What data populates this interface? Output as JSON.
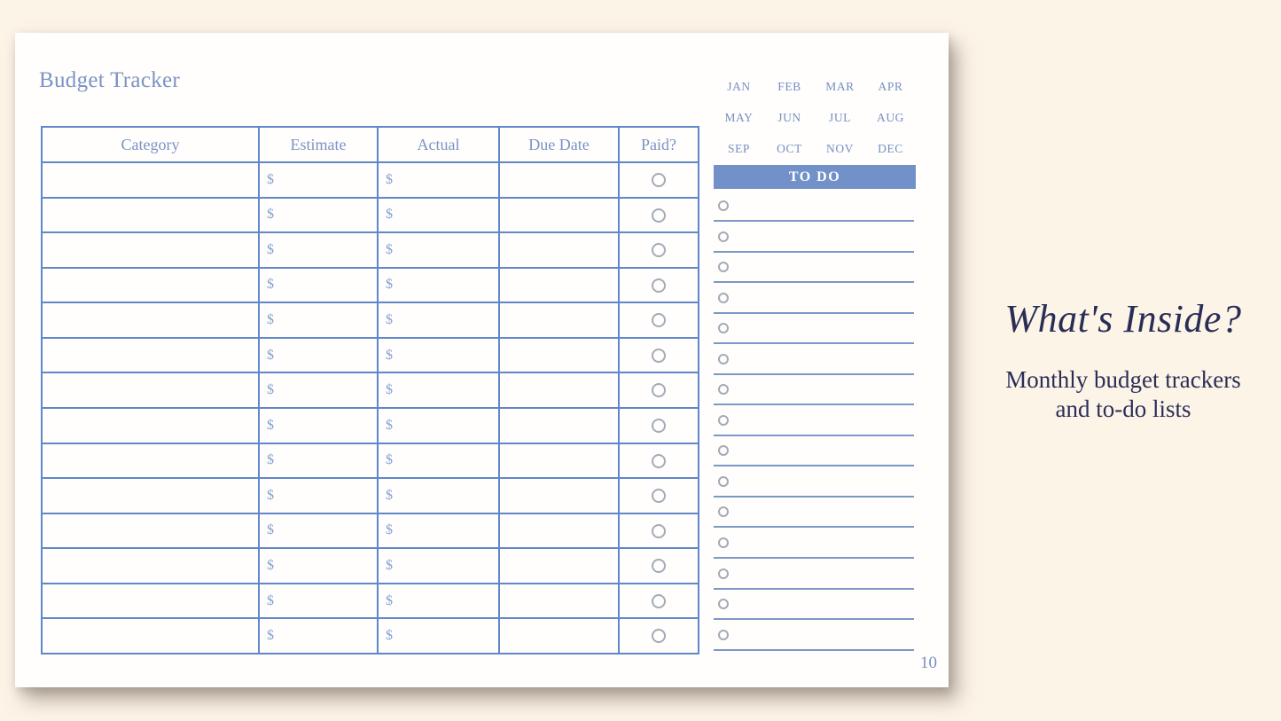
{
  "page": {
    "title": "Budget Tracker",
    "page_number": "10"
  },
  "table": {
    "columns": [
      "Category",
      "Estimate",
      "Actual",
      "Due Date",
      "Paid?"
    ],
    "rows": [
      {
        "category": "",
        "estimate": "$",
        "actual": "$",
        "due_date": "",
        "paid": ""
      },
      {
        "category": "",
        "estimate": "$",
        "actual": "$",
        "due_date": "",
        "paid": ""
      },
      {
        "category": "",
        "estimate": "$",
        "actual": "$",
        "due_date": "",
        "paid": ""
      },
      {
        "category": "",
        "estimate": "$",
        "actual": "$",
        "due_date": "",
        "paid": ""
      },
      {
        "category": "",
        "estimate": "$",
        "actual": "$",
        "due_date": "",
        "paid": ""
      },
      {
        "category": "",
        "estimate": "$",
        "actual": "$",
        "due_date": "",
        "paid": ""
      },
      {
        "category": "",
        "estimate": "$",
        "actual": "$",
        "due_date": "",
        "paid": ""
      },
      {
        "category": "",
        "estimate": "$",
        "actual": "$",
        "due_date": "",
        "paid": ""
      },
      {
        "category": "",
        "estimate": "$",
        "actual": "$",
        "due_date": "",
        "paid": ""
      },
      {
        "category": "",
        "estimate": "$",
        "actual": "$",
        "due_date": "",
        "paid": ""
      },
      {
        "category": "",
        "estimate": "$",
        "actual": "$",
        "due_date": "",
        "paid": ""
      },
      {
        "category": "",
        "estimate": "$",
        "actual": "$",
        "due_date": "",
        "paid": ""
      },
      {
        "category": "",
        "estimate": "$",
        "actual": "$",
        "due_date": "",
        "paid": ""
      },
      {
        "category": "",
        "estimate": "$",
        "actual": "$",
        "due_date": "",
        "paid": ""
      }
    ]
  },
  "months": [
    "JAN",
    "FEB",
    "MAR",
    "APR",
    "MAY",
    "JUN",
    "JUL",
    "AUG",
    "SEP",
    "OCT",
    "NOV",
    "DEC"
  ],
  "todo": {
    "header": "TO DO",
    "items": [
      "",
      "",
      "",
      "",
      "",
      "",
      "",
      "",
      "",
      "",
      "",
      "",
      "",
      "",
      ""
    ]
  },
  "aside": {
    "heading": "What's Inside?",
    "description_line1": "Monthly budget trackers",
    "description_line2": "and to-do lists"
  },
  "colors": {
    "background": "#fdf4e8",
    "card": "#fffefc",
    "table_border": "#5f87ca",
    "accent_text": "#7a92c5",
    "todo_bar": "#7191c8",
    "todo_line": "#7b98c8",
    "circle_outline": "#a3aab8",
    "navy_text": "#2a2e57"
  }
}
